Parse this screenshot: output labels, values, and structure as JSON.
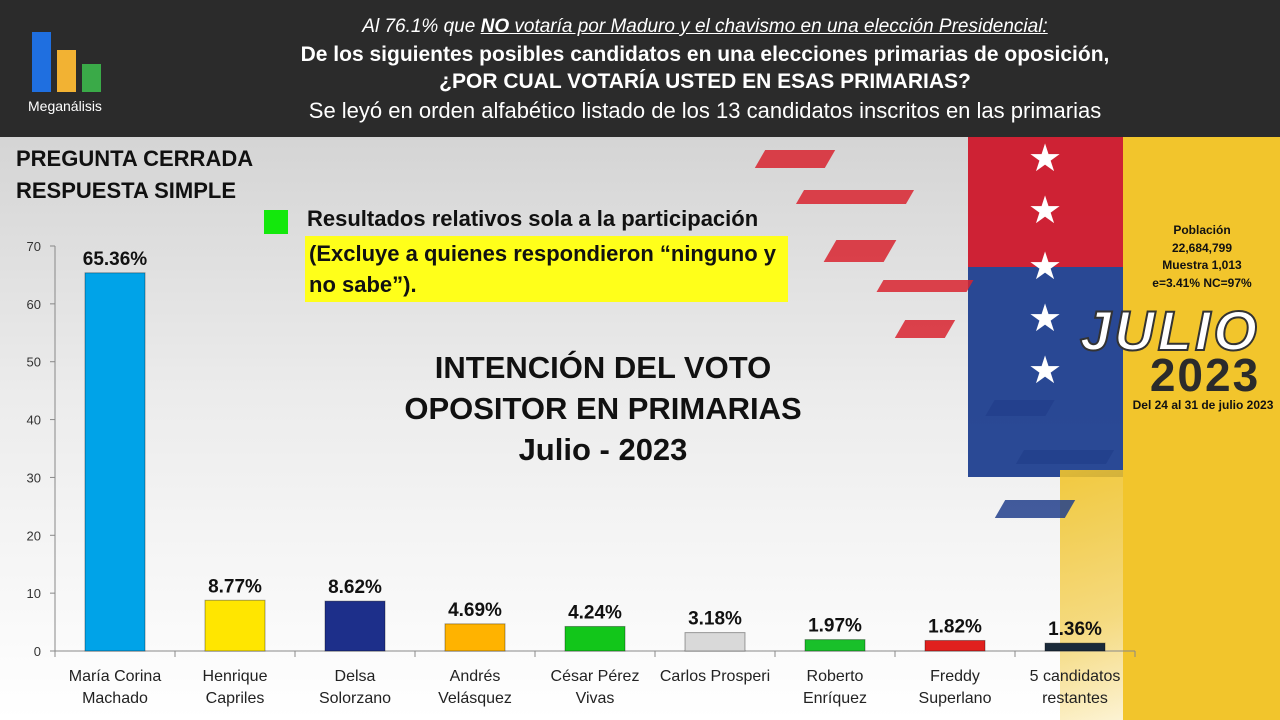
{
  "header": {
    "logo_text": "Meganálisis",
    "line1_pre": "Al 76.1% que ",
    "line1_em": "NO",
    "line1_post": " votaría por Maduro y el chavismo en una elección Presidencial:",
    "line2": "De los siguientes posibles candidatos en una elecciones primarias de oposición,",
    "line3": "¿POR CUAL VOTARÍA USTED EN ESAS PRIMARIAS?",
    "line4": "Se leyó en orden alfabético listado de los 13 candidatos inscritos en las primarias",
    "colors": {
      "bar1": "#1f6fe0",
      "bar2": "#f2b233",
      "bar3": "#3aaa48"
    }
  },
  "question_type": [
    "PREGUNTA  CERRADA",
    "RESPUESTA SIMPLE"
  ],
  "note": {
    "line1": "Resultados relativos sola a la participación",
    "line2": "(Excluye a quienes respondieron “ninguno y no sabe”).",
    "marker_color": "#13e80c"
  },
  "main_title": [
    "INTENCIÓN DEL VOTO",
    "OPOSITOR EN PRIMARIAS",
    "Julio - 2023"
  ],
  "stats": [
    "Población",
    "22,684,799",
    "Muestra 1,013",
    "e=3.41%  NC=97%"
  ],
  "badge": {
    "month": "JULIO",
    "year": "2023",
    "dates": "Del 24 al 31 de julio 2023"
  },
  "chart_data": {
    "type": "bar",
    "categories": [
      [
        "María Corina",
        "Machado"
      ],
      [
        "Henrique",
        "Capriles"
      ],
      [
        "Delsa",
        "Solorzano"
      ],
      [
        "Andrés",
        "Velásquez"
      ],
      [
        "César Pérez",
        "Vivas"
      ],
      [
        "Carlos Prosperi"
      ],
      [
        "Roberto",
        "Enríquez"
      ],
      [
        "Freddy",
        "Superlano"
      ],
      [
        "5 candidatos",
        "restantes"
      ]
    ],
    "values": [
      65.36,
      8.77,
      8.62,
      4.69,
      4.24,
      3.18,
      1.97,
      1.82,
      1.36
    ],
    "value_labels": [
      "65.36%",
      "8.77%",
      "8.62%",
      "4.69%",
      "4.24%",
      "3.18%",
      "1.97%",
      "1.82%",
      "1.36%"
    ],
    "bar_colors": [
      "#00a3e8",
      "#ffe600",
      "#1d2f8a",
      "#ffb300",
      "#12c61a",
      "#d9d9d9",
      "#19c02a",
      "#e0201e",
      "#1a2a3a"
    ],
    "ylim": [
      0,
      70
    ],
    "yticks": [
      0,
      10,
      20,
      30,
      40,
      50,
      60,
      70
    ],
    "grid": false
  }
}
